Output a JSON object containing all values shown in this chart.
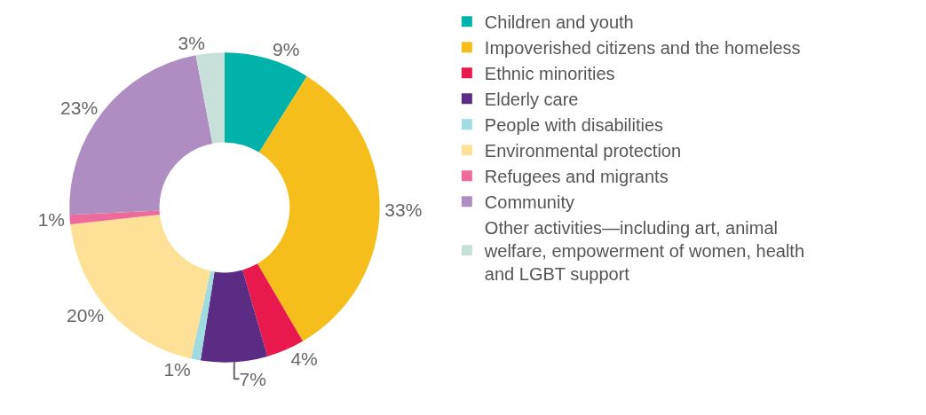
{
  "chart_data": {
    "type": "donut",
    "categories": [
      "Children and youth",
      "Impoverished citizens and the homeless",
      "Ethnic minorities",
      "Elderly care",
      "People with disabilities",
      "Environmental protection",
      "Refugees and migrants",
      "Community",
      "Other activities—including art, animal welfare, empowerment of women, health and LGBT support"
    ],
    "values": [
      9,
      33,
      4,
      7,
      1,
      20,
      1,
      23,
      3
    ],
    "value_labels": [
      "9%",
      "33%",
      "4%",
      "7%",
      "1%",
      "20%",
      "1%",
      "23%",
      "3%"
    ],
    "colors": [
      "#00b2a9",
      "#f5be1a",
      "#e8194d",
      "#5b2c83",
      "#9fdbe0",
      "#fee097",
      "#ee6a9b",
      "#b08dc0",
      "#c7e0da"
    ],
    "legend": "right"
  }
}
